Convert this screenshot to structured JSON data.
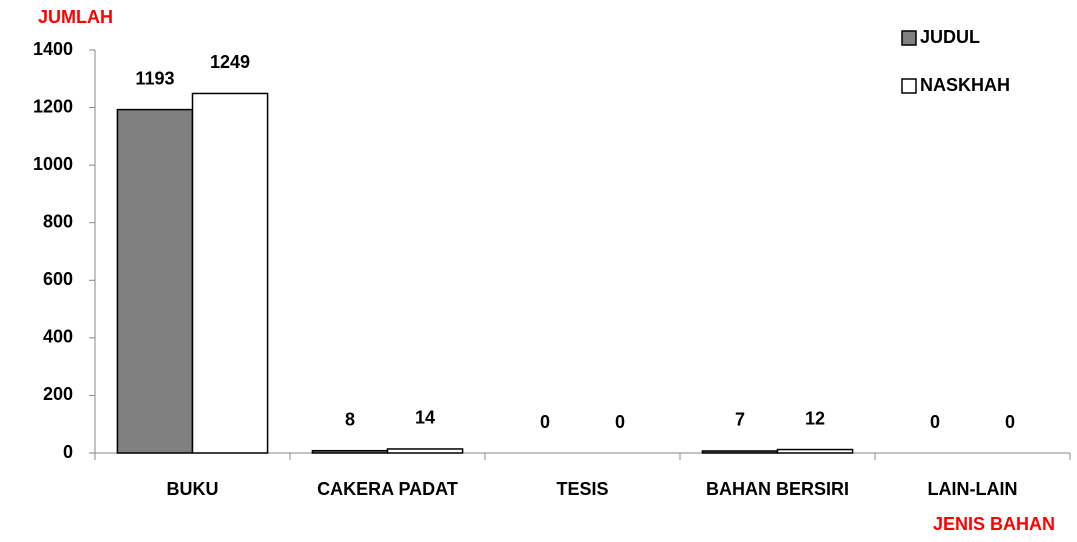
{
  "chart_data": {
    "type": "bar",
    "y_axis_label": "JUMLAH",
    "x_axis_label": "JENIS BAHAN",
    "categories": [
      "BUKU",
      "CAKERA PADAT",
      "TESIS",
      "BAHAN BERSIRI",
      "LAIN-LAIN"
    ],
    "series": [
      {
        "name": "JUDUL",
        "color": "#808080",
        "values": [
          1193,
          8,
          0,
          7,
          0
        ]
      },
      {
        "name": "NASKHAH",
        "color": "#ffffff",
        "values": [
          1249,
          14,
          0,
          12,
          0
        ]
      }
    ],
    "ylim": [
      0,
      1400
    ],
    "yticks": [
      0,
      200,
      400,
      600,
      800,
      1000,
      1200,
      1400
    ],
    "legend": "top-right"
  }
}
